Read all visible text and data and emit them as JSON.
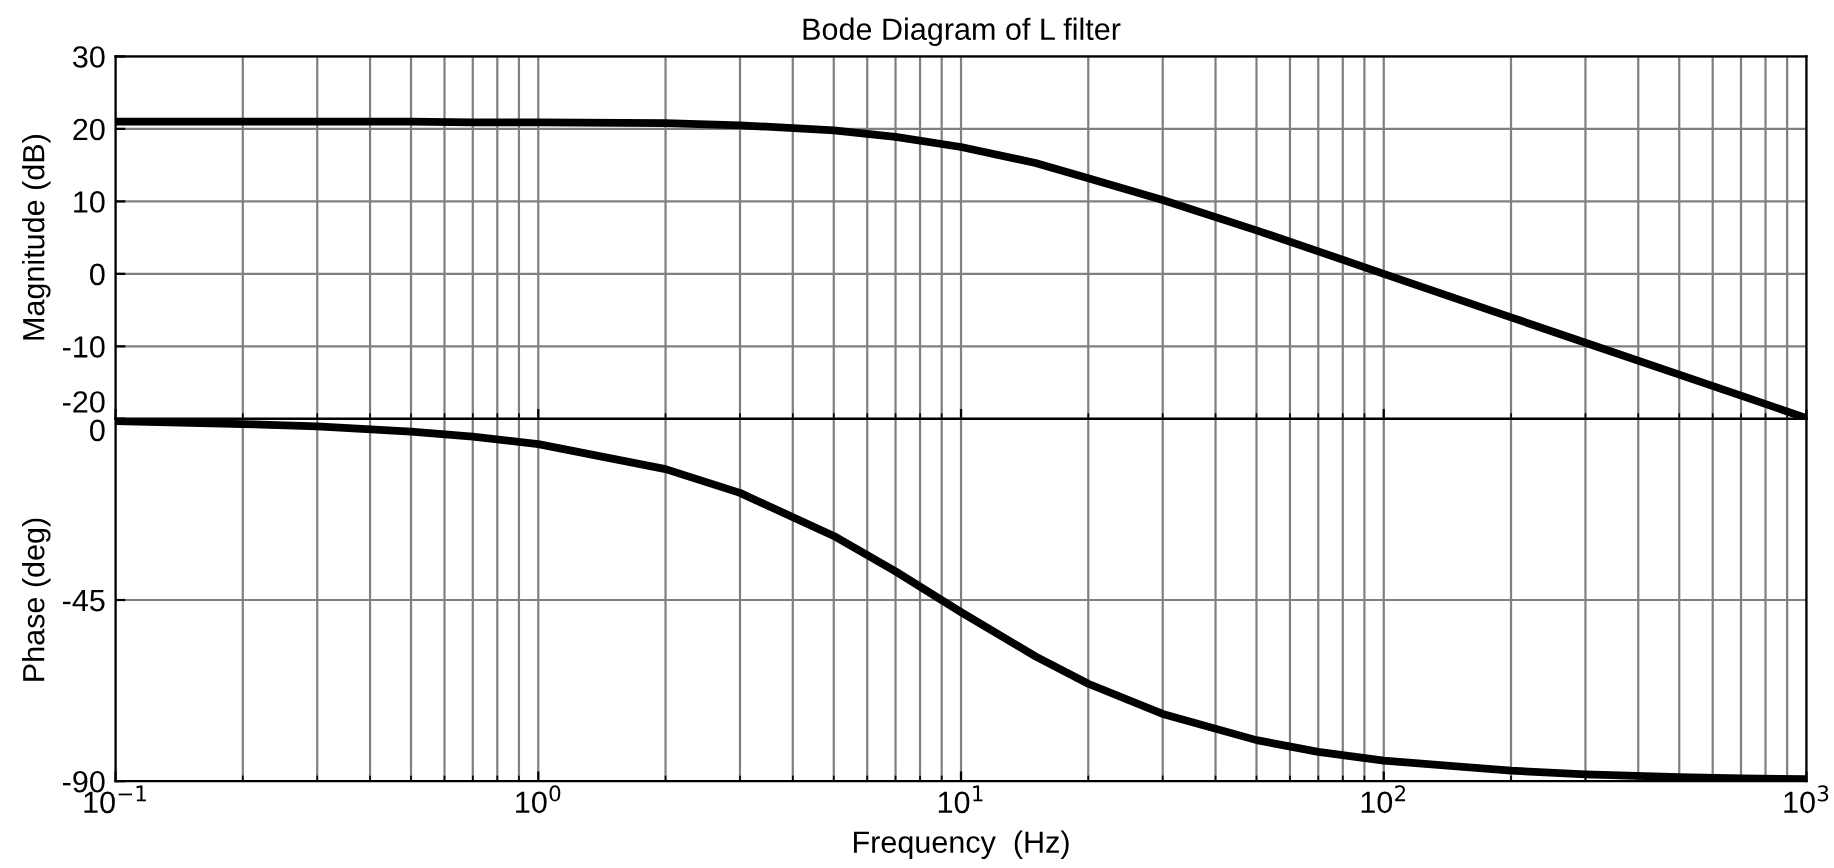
{
  "chart_data": [
    {
      "type": "line",
      "title": "Bode Diagram of L filter",
      "ylabel": "Magnitude (dB)",
      "log": "x",
      "grid": true,
      "tick_labels": "y",
      "xlim": [
        0.1,
        1000
      ],
      "ylim": [
        -20,
        30
      ],
      "yticks": [
        -20,
        -10,
        0,
        10,
        20,
        30
      ],
      "x": [
        0.1,
        0.2,
        0.3,
        0.5,
        0.7,
        1,
        2,
        3,
        5,
        7,
        10,
        15,
        20,
        30,
        50,
        70,
        100,
        200,
        300,
        500,
        700,
        1000
      ],
      "series": [
        {
          "color": "#000000",
          "values": [
            21.0,
            21.0,
            21.0,
            21.0,
            20.9,
            20.9,
            20.8,
            20.5,
            19.8,
            18.9,
            17.5,
            15.3,
            13.2,
            10.2,
            6.0,
            3.1,
            0.0,
            -6.0,
            -9.5,
            -13.9,
            -16.8,
            -19.9
          ]
        }
      ]
    },
    {
      "type": "line",
      "xlabel": "Frequency  (Hz)",
      "ylabel": "Phase (deg)",
      "log": "x",
      "grid": true,
      "xlim": [
        0.1,
        1000
      ],
      "xticks": [
        {
          "value": 0.1,
          "label": "10$^{−1}$"
        },
        {
          "value": 1,
          "label": "10$^{0}$"
        },
        {
          "value": 10,
          "label": "10$^{1}$"
        },
        {
          "value": 100,
          "label": "10$^{2}$"
        },
        {
          "value": 1000,
          "label": "10$^{3}$"
        }
      ],
      "ylim": [
        -90,
        0
      ],
      "yticks": [
        -90,
        -45,
        0
      ],
      "x": [
        0.1,
        0.2,
        0.3,
        0.5,
        0.7,
        1,
        2,
        3,
        5,
        7,
        10,
        15,
        20,
        30,
        50,
        70,
        100,
        200,
        300,
        500,
        700,
        1000
      ],
      "series": [
        {
          "color": "#000000",
          "values": [
            -0.6,
            -1.3,
            -1.9,
            -3.2,
            -4.4,
            -6.3,
            -12.5,
            -18.4,
            -29.1,
            -37.9,
            -48.0,
            -59.0,
            -65.8,
            -73.3,
            -79.8,
            -82.7,
            -84.9,
            -87.4,
            -88.3,
            -89.0,
            -89.3,
            -89.5
          ]
        }
      ]
    }
  ]
}
